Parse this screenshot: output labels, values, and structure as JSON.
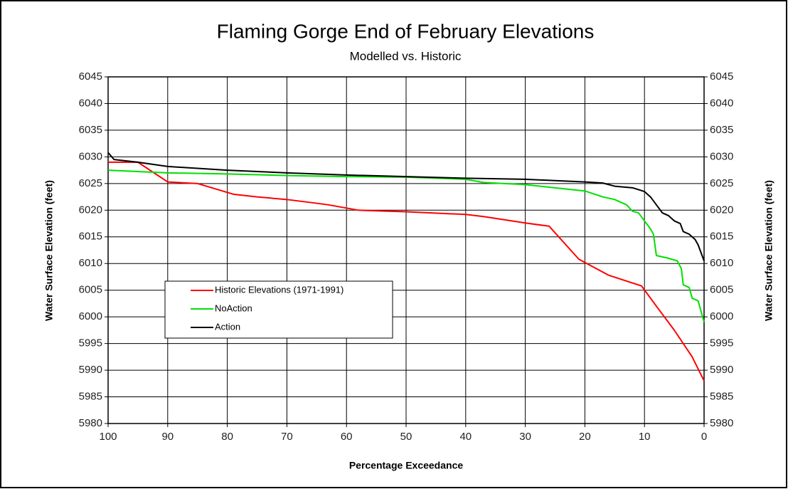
{
  "chart_data": {
    "type": "line",
    "title": "Flaming Gorge End of February Elevations",
    "subtitle": "Modelled vs. Historic",
    "x_label": "Percentage Exceedance",
    "y_label": "Water Surface Elevation (feet)",
    "y2_label": "Water Surface Elevation (feet)",
    "xlim": [
      100,
      0
    ],
    "xticks": [
      100,
      90,
      80,
      70,
      60,
      50,
      40,
      30,
      20,
      10,
      0
    ],
    "ylim": [
      5980,
      6045
    ],
    "yticks": [
      5980,
      5985,
      5990,
      5995,
      6000,
      6005,
      6010,
      6015,
      6020,
      6025,
      6030,
      6035,
      6040,
      6045
    ],
    "y2lim": [
      5980,
      6045
    ],
    "y2ticks": [
      5980,
      5985,
      5990,
      5995,
      6000,
      6005,
      6010,
      6015,
      6020,
      6025,
      6030,
      6035,
      6040,
      6045
    ],
    "grid": true,
    "legend_position": "lower left",
    "series": [
      {
        "name": "Historic Elevations (1971-1991)",
        "color": "#ff0000",
        "x": [
          100,
          95,
          90,
          85,
          79,
          75,
          70,
          65,
          63,
          58,
          50,
          40,
          37,
          30,
          26,
          21,
          16,
          10.5,
          8,
          5,
          2,
          0
        ],
        "values": [
          6029,
          6029,
          6025.3,
          6025,
          6023,
          6022.5,
          6022,
          6021.3,
          6021,
          6020,
          6019.7,
          6019.2,
          6018.8,
          6017.6,
          6017,
          6010.8,
          6007.8,
          6005.8,
          6002,
          5997.5,
          5992.5,
          5988
        ]
      },
      {
        "name": "NoAction",
        "color": "#00e000",
        "x": [
          100,
          90,
          80,
          70,
          60,
          50,
          40,
          37,
          30,
          25,
          20,
          17,
          15,
          13,
          12,
          11,
          10,
          9,
          8.5,
          8,
          6,
          4.5,
          3.8,
          3.5,
          2.5,
          2,
          1,
          0.5,
          0
        ],
        "values": [
          6027.5,
          6027,
          6026.8,
          6026.5,
          6026.3,
          6026.2,
          6025.8,
          6025.2,
          6024.8,
          6024.2,
          6023.6,
          6022.5,
          6022,
          6021,
          6019.8,
          6019.5,
          6018,
          6016.5,
          6015.5,
          6011.5,
          6011,
          6010.5,
          6009,
          6006,
          6005.5,
          6003.5,
          6003,
          6001,
          5999
        ]
      },
      {
        "name": "Action",
        "color": "#000000",
        "x": [
          100,
          99,
          95,
          90,
          80,
          70,
          60,
          50,
          40,
          30,
          20,
          17,
          15,
          12,
          10,
          9,
          8,
          7,
          6,
          5,
          4,
          3.5,
          2.5,
          1.5,
          1,
          0
        ],
        "values": [
          6030.8,
          6029.5,
          6029,
          6028.2,
          6027.5,
          6027,
          6026.6,
          6026.3,
          6026,
          6025.8,
          6025.3,
          6025.1,
          6024.5,
          6024.2,
          6023.5,
          6022.5,
          6021,
          6019.5,
          6019,
          6018,
          6017.5,
          6016,
          6015.5,
          6014.5,
          6013.5,
          6010.5
        ]
      }
    ]
  }
}
